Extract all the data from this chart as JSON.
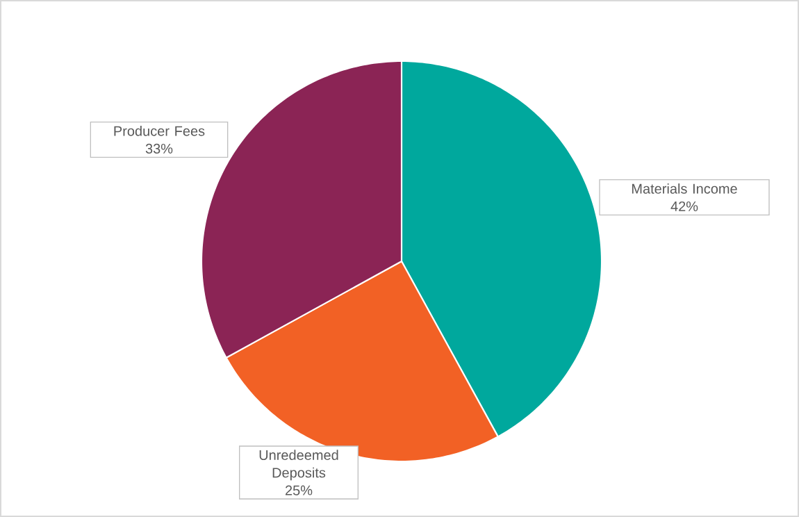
{
  "chart_data": {
    "type": "pie",
    "categories": [
      "Materials Income",
      "Unredeemed Deposits",
      "Producer Fees"
    ],
    "values": [
      42,
      25,
      33
    ],
    "colors": [
      "#00a89d",
      "#f26125",
      "#8b2455"
    ],
    "value_labels": [
      "42%",
      "25%",
      "33%"
    ]
  }
}
